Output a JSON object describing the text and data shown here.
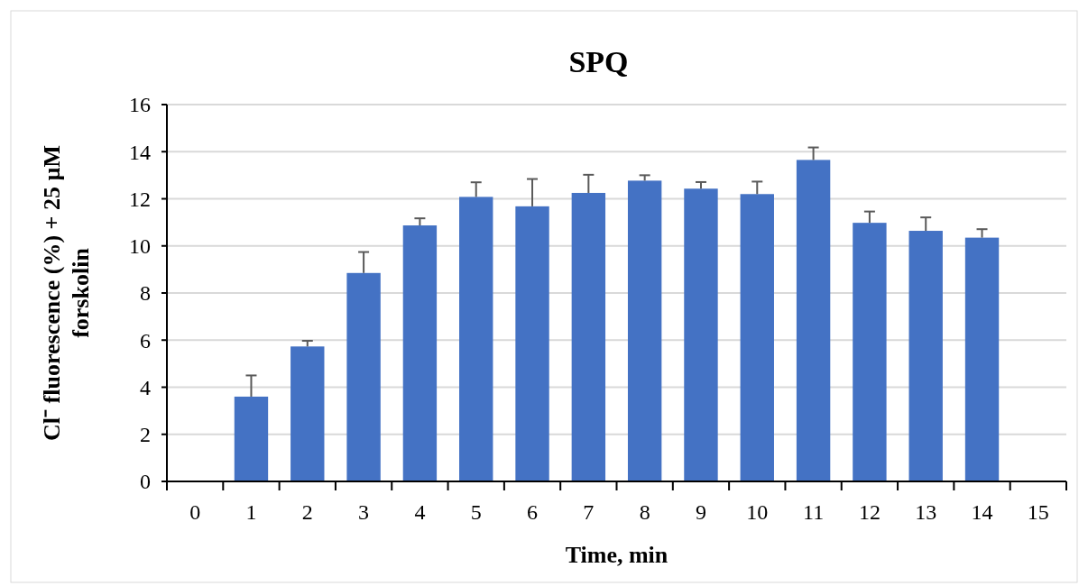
{
  "chart_data": {
    "type": "bar",
    "title": "SPQ",
    "xlabel": "Time, min",
    "ylabel": "Cl⁻ fluorescence (%) + 25 µM forskolin",
    "categories": [
      "0",
      "1",
      "2",
      "3",
      "4",
      "5",
      "6",
      "7",
      "8",
      "9",
      "10",
      "11",
      "12",
      "13",
      "14",
      "15"
    ],
    "values": [
      null,
      3.6,
      5.73,
      8.85,
      10.87,
      12.08,
      11.68,
      12.25,
      12.77,
      12.43,
      12.2,
      13.65,
      10.98,
      10.64,
      10.35,
      null
    ],
    "errors": [
      null,
      [
        3.6,
        4.5
      ],
      [
        5.73,
        5.97
      ],
      [
        8.85,
        9.74
      ],
      [
        10.87,
        11.17
      ],
      [
        12.08,
        12.7
      ],
      [
        11.68,
        12.84
      ],
      [
        12.25,
        13.02
      ],
      [
        12.77,
        13.0
      ],
      [
        12.43,
        12.71
      ],
      [
        12.2,
        12.73
      ],
      [
        13.65,
        14.18
      ],
      [
        10.98,
        11.46
      ],
      [
        10.64,
        11.21
      ],
      [
        10.35,
        10.71
      ],
      null
    ],
    "color": "#4472c4",
    "ylim": [
      0,
      16
    ],
    "yticks": [
      0,
      2,
      4,
      6,
      8,
      10,
      12,
      14,
      16
    ],
    "grid": "y"
  }
}
